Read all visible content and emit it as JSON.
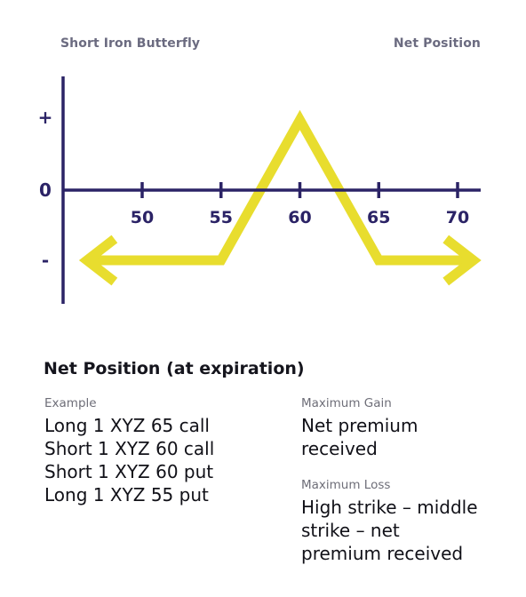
{
  "header": {
    "left_label": "Short Iron Butterfly",
    "right_label": "Net Position"
  },
  "chart_data": {
    "type": "line",
    "title": "Short Iron Butterfly",
    "x_tick_labels": [
      "50",
      "55",
      "60",
      "65",
      "70"
    ],
    "x_ticks": [
      50,
      55,
      60,
      65,
      70
    ],
    "y_axis_labels": {
      "top": "+",
      "zero": "0",
      "bottom": "-"
    },
    "xlim": [
      45.5,
      71.5
    ],
    "ylim": [
      -1.1,
      1.2
    ],
    "series": [
      {
        "x": [
          46.5,
          55,
          60,
          65,
          71
        ],
        "y": [
          -1,
          -1,
          1,
          -1,
          -1
        ],
        "arrows": "both-ends"
      }
    ],
    "grid": false,
    "colors": {
      "axis": "#2b2366",
      "payoff": "#e8dd2e"
    }
  },
  "details": {
    "title": "Net Position (at expiration)",
    "example": {
      "caption": "Example",
      "lines": [
        "Long 1 XYZ 65 call",
        "Short 1 XYZ 60 call",
        "Short 1 XYZ 60 put",
        "Long 1 XYZ 55 put"
      ]
    },
    "max_gain": {
      "caption": "Maximum Gain",
      "lines": [
        "Net premium",
        "received"
      ]
    },
    "max_loss": {
      "caption": "Maximum Loss",
      "lines": [
        "High strike – middle",
        "strike – net",
        "premium received"
      ]
    }
  }
}
